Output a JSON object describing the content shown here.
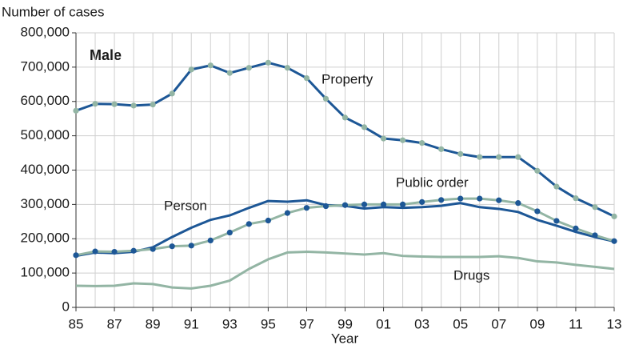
{
  "chart_data": {
    "type": "line",
    "y_label": "Number of cases",
    "x_label": "Year",
    "annotation": "Male",
    "categories": [
      "85",
      null,
      "87",
      null,
      "89",
      null,
      "91",
      null,
      "93",
      null,
      "95",
      null,
      "97",
      null,
      "99",
      null,
      "01",
      null,
      "03",
      null,
      "05",
      null,
      "07",
      null,
      "09",
      null,
      "11",
      null,
      "13"
    ],
    "ylim": [
      0,
      800000
    ],
    "yticks": [
      0,
      {
        "value": 100000,
        "label": "100,000"
      },
      {
        "value": 200000,
        "label": "200,000"
      },
      {
        "value": 300000,
        "label": "300,000"
      },
      {
        "value": 400000,
        "label": "400,000"
      },
      {
        "value": 500000,
        "label": "500,000"
      },
      {
        "value": 600000,
        "label": "600,000"
      },
      {
        "value": 700000,
        "label": "700,000"
      },
      {
        "value": 800000,
        "label": "800,000"
      }
    ],
    "grid": true,
    "series": [
      {
        "name": "Property",
        "color": "#1d5796",
        "marker_color": "#93b5a4",
        "values": [
          573000,
          593000,
          592000,
          588000,
          591000,
          623000,
          693000,
          705000,
          683000,
          698000,
          713000,
          698000,
          668000,
          608000,
          553000,
          525000,
          492000,
          487000,
          479000,
          461000,
          447000,
          438000,
          438000,
          438000,
          398000,
          352000,
          318000,
          292000,
          265000
        ]
      },
      {
        "name": "Person",
        "color": "#1d5796",
        "values": [
          150000,
          160000,
          158000,
          162000,
          175000,
          205000,
          232000,
          255000,
          268000,
          290000,
          310000,
          308000,
          312000,
          298000,
          296000,
          288000,
          292000,
          290000,
          292000,
          296000,
          304000,
          292000,
          287000,
          278000,
          255000,
          238000,
          220000,
          205000,
          192000
        ]
      },
      {
        "name": "Public order",
        "color": "#93b5a4",
        "marker_color": "#1d5796",
        "values": [
          152000,
          163000,
          162000,
          165000,
          170000,
          178000,
          180000,
          195000,
          218000,
          243000,
          253000,
          275000,
          290000,
          295000,
          298000,
          300000,
          300000,
          300000,
          307000,
          313000,
          317000,
          317000,
          312000,
          304000,
          280000,
          252000,
          230000,
          210000,
          193000
        ]
      },
      {
        "name": "Drugs",
        "color": "#93b5a4",
        "values": [
          63000,
          62000,
          63000,
          70000,
          68000,
          58000,
          55000,
          63000,
          78000,
          112000,
          140000,
          160000,
          162000,
          160000,
          157000,
          154000,
          158000,
          150000,
          148000,
          147000,
          147000,
          147000,
          149000,
          144000,
          134000,
          131000,
          124000,
          118000,
          112000
        ]
      }
    ]
  }
}
